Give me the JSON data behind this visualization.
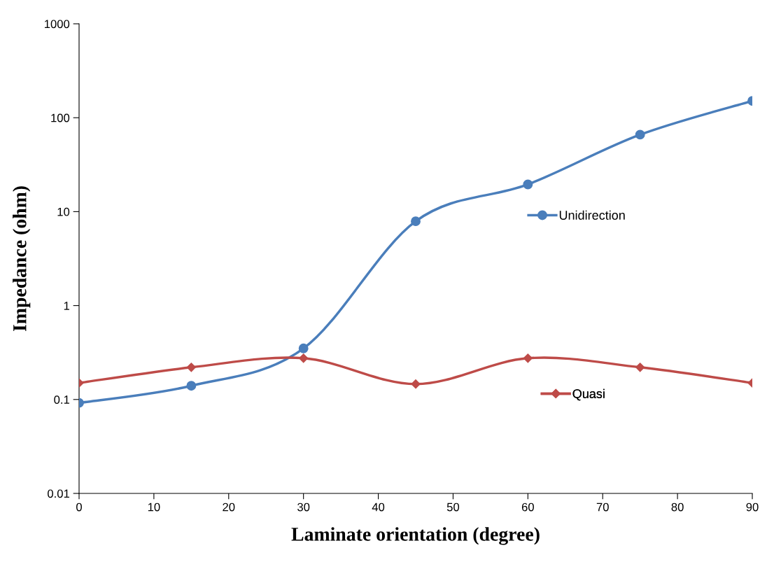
{
  "chart_data": {
    "type": "line",
    "xlabel": "Laminate orientation (degree)",
    "ylabel": "Impedance (ohm)",
    "x": [
      0,
      15,
      30,
      45,
      60,
      75,
      90
    ],
    "series": [
      {
        "name": "Unidirection",
        "color": "#4a7ebb",
        "marker": "circle",
        "values": [
          0.092,
          0.14,
          0.35,
          7.9,
          19.5,
          66,
          151
        ]
      },
      {
        "name": "Quasi",
        "color": "#be4b48",
        "marker": "diamond",
        "values": [
          0.15,
          0.22,
          0.275,
          0.146,
          0.275,
          0.22,
          0.15
        ]
      }
    ],
    "log": "y",
    "xlim": [
      0,
      90
    ],
    "xticks": [
      0,
      10,
      20,
      30,
      40,
      50,
      60,
      70,
      80,
      90
    ],
    "ylim": [
      0.01,
      1000
    ],
    "yticks": [
      0.01,
      0.1,
      1,
      10,
      100,
      1000
    ],
    "grid": false,
    "legend": "right",
    "line_style": "solid"
  }
}
